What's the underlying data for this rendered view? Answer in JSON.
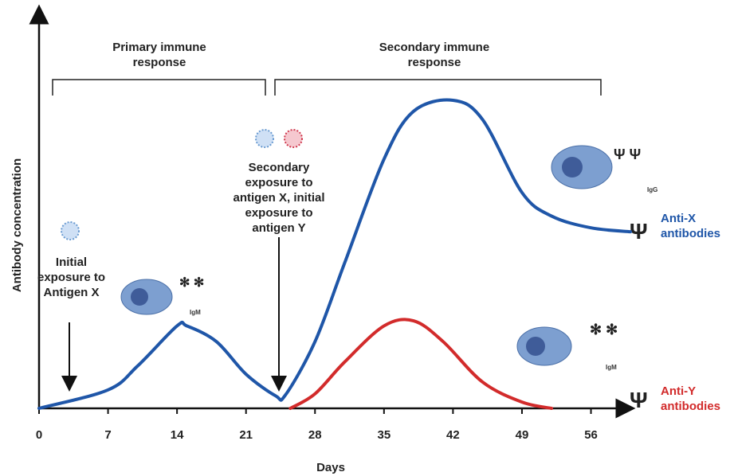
{
  "chart_data": {
    "type": "line",
    "x_label": "Days",
    "y_label": "Antibody concentration",
    "xlim": [
      0,
      60
    ],
    "xticks": [
      0,
      7,
      14,
      21,
      28,
      35,
      42,
      49,
      56
    ],
    "ylim": [
      0,
      100
    ],
    "series": [
      {
        "name": "Anti-X antibodies",
        "color": "#1f56a8",
        "x": [
          0,
          7,
          10,
          14,
          15,
          18,
          21,
          24,
          25,
          28,
          31,
          35,
          38,
          42,
          45,
          49,
          52,
          56,
          60
        ],
        "values": [
          0,
          4.7,
          10.8,
          21,
          21,
          17,
          8.7,
          3.2,
          3.4,
          17,
          37,
          63.5,
          75.7,
          78.5,
          73.6,
          55,
          49,
          46,
          45
        ]
      },
      {
        "name": "Anti-Y antibodies",
        "color": "#d22b2b",
        "x": [
          25.5,
          28,
          31,
          35,
          38,
          41,
          45,
          49,
          52
        ],
        "values": [
          0,
          3.7,
          11.8,
          21,
          22.3,
          17,
          6.7,
          1.6,
          0
        ]
      }
    ],
    "annotations": [
      "Primary immune response",
      "Secondary immune response",
      "Initial exposure to Antigen X",
      "Secondary exposure to antigen X, initial exposure to antigen Y",
      "IgM",
      "IgG",
      "IgM"
    ]
  }
}
